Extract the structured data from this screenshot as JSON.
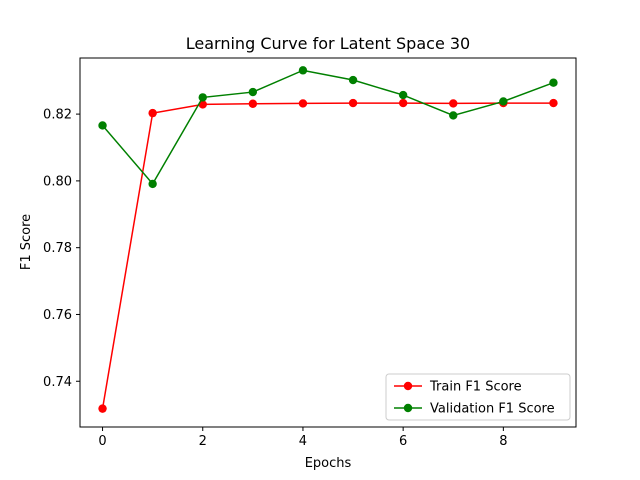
{
  "chart_data": {
    "type": "line",
    "title": "Learning Curve for Latent Space 30",
    "xlabel": "Epochs",
    "ylabel": "F1 Score",
    "xlim": [
      -0.45,
      9.45
    ],
    "ylim": [
      0.7263,
      0.8368
    ],
    "x_ticks": [
      0,
      2,
      4,
      6,
      8
    ],
    "x_tick_labels": [
      "0",
      "2",
      "4",
      "6",
      "8"
    ],
    "y_ticks": [
      0.74,
      0.76,
      0.78,
      0.8,
      0.82
    ],
    "y_tick_labels": [
      "0.74",
      "0.76",
      "0.78",
      "0.80",
      "0.82"
    ],
    "grid": false,
    "legend_position": "lower-right",
    "x": [
      0,
      1,
      2,
      3,
      4,
      5,
      6,
      7,
      8,
      9
    ],
    "series": [
      {
        "name": "Train F1 Score",
        "color": "#ff0000",
        "marker": "circle",
        "values": [
          0.7318,
          0.8203,
          0.8229,
          0.8231,
          0.8232,
          0.8233,
          0.8233,
          0.8232,
          0.8233,
          0.8233
        ]
      },
      {
        "name": "Validation F1 Score",
        "color": "#008000",
        "marker": "circle",
        "values": [
          0.8166,
          0.7991,
          0.825,
          0.8266,
          0.8331,
          0.8302,
          0.8257,
          0.8196,
          0.8238,
          0.8294
        ]
      }
    ]
  }
}
